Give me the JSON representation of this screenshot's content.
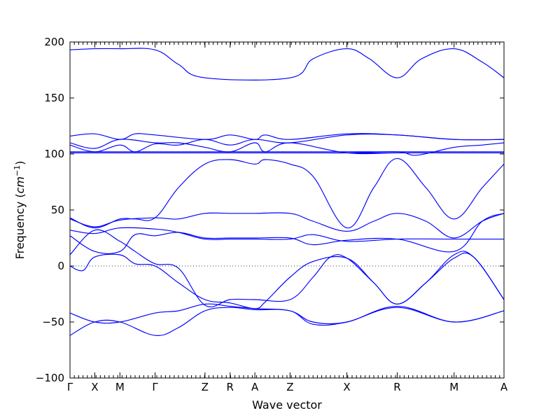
{
  "chart_data": {
    "type": "line",
    "title": "",
    "xlabel": "Wave vector",
    "ylabel": "Frequency (cm⁻¹)",
    "ylabel_main": "Frequency (",
    "ylabel_unit": "cm",
    "ylabel_exp": "−1",
    "ylabel_close": ")",
    "ylim": [
      -100,
      200
    ],
    "yticks": [
      200,
      150,
      100,
      50,
      0,
      -50,
      -100
    ],
    "ytick_labels": [
      "200",
      "150",
      "100",
      "50",
      "0",
      "−50",
      "−100"
    ],
    "xlim": [
      0,
      1
    ],
    "high_symmetry_points": [
      {
        "label": "Γ",
        "x": 0.0
      },
      {
        "label": "X",
        "x": 0.057
      },
      {
        "label": "M",
        "x": 0.115
      },
      {
        "label": "Γ",
        "x": 0.196
      },
      {
        "label": "Z",
        "x": 0.311
      },
      {
        "label": "R",
        "x": 0.369
      },
      {
        "label": "A",
        "x": 0.426
      },
      {
        "label": "Z",
        "x": 0.507
      },
      {
        "label": "X",
        "x": 0.638
      },
      {
        "label": "R",
        "x": 0.754
      },
      {
        "label": "M",
        "x": 0.885
      },
      {
        "label": "A",
        "x": 1.0
      }
    ],
    "zero_line": true,
    "line_color": "#0000ff",
    "series": [
      {
        "points": [
          [
            0,
            193
          ],
          [
            0.057,
            194
          ],
          [
            0.115,
            194
          ],
          [
            0.196,
            193
          ],
          [
            0.25,
            180
          ],
          [
            0.311,
            168
          ],
          [
            0.507,
            168
          ],
          [
            0.56,
            185
          ],
          [
            0.638,
            194
          ],
          [
            0.69,
            185
          ],
          [
            0.754,
            168
          ],
          [
            0.81,
            185
          ],
          [
            0.885,
            194
          ],
          [
            0.95,
            182
          ],
          [
            1.0,
            168
          ]
        ]
      },
      {
        "points": [
          [
            0,
            116
          ],
          [
            0.057,
            118
          ],
          [
            0.115,
            113
          ],
          [
            0.15,
            118
          ],
          [
            0.196,
            117
          ],
          [
            0.311,
            113
          ],
          [
            0.369,
            117
          ],
          [
            0.426,
            113
          ],
          [
            0.45,
            117
          ],
          [
            0.507,
            113
          ],
          [
            0.638,
            118
          ],
          [
            0.754,
            117
          ],
          [
            0.885,
            113
          ],
          [
            1.0,
            113
          ]
        ]
      },
      {
        "points": [
          [
            0,
            108
          ],
          [
            0.057,
            102
          ],
          [
            0.115,
            108
          ],
          [
            0.15,
            102
          ],
          [
            0.196,
            109
          ],
          [
            0.25,
            108
          ],
          [
            0.311,
            113
          ],
          [
            0.369,
            108
          ],
          [
            0.426,
            113
          ],
          [
            0.507,
            110
          ],
          [
            0.638,
            117
          ],
          [
            0.754,
            117
          ],
          [
            0.885,
            113
          ],
          [
            1.0,
            113
          ]
        ]
      },
      {
        "points": [
          [
            0,
            110
          ],
          [
            0.057,
            105
          ],
          [
            0.115,
            113
          ],
          [
            0.196,
            110
          ],
          [
            0.25,
            110
          ],
          [
            0.311,
            106
          ],
          [
            0.369,
            102
          ],
          [
            0.426,
            110
          ],
          [
            0.45,
            102
          ],
          [
            0.507,
            110
          ],
          [
            0.638,
            101
          ],
          [
            0.754,
            101
          ],
          [
            0.885,
            101
          ],
          [
            1.0,
            101
          ]
        ]
      },
      {
        "points": [
          [
            0,
            102
          ],
          [
            0.196,
            102
          ],
          [
            0.507,
            102
          ],
          [
            0.638,
            102
          ],
          [
            0.754,
            102
          ],
          [
            0.885,
            102
          ],
          [
            1.0,
            102
          ]
        ]
      },
      {
        "points": [
          [
            0,
            101
          ],
          [
            0.196,
            101
          ],
          [
            0.507,
            101
          ],
          [
            0.638,
            101
          ],
          [
            0.754,
            101
          ],
          [
            0.885,
            101
          ],
          [
            1.0,
            101
          ]
        ]
      },
      {
        "points": [
          [
            0,
            101
          ],
          [
            0.196,
            101
          ],
          [
            0.311,
            101
          ],
          [
            0.507,
            101
          ],
          [
            0.57,
            101
          ],
          [
            0.638,
            101
          ],
          [
            0.754,
            102
          ],
          [
            0.8,
            99
          ],
          [
            0.885,
            106
          ],
          [
            0.95,
            108
          ],
          [
            1.0,
            110
          ]
        ]
      },
      {
        "points": [
          [
            0,
            43
          ],
          [
            0.057,
            34
          ],
          [
            0.115,
            42
          ],
          [
            0.15,
            42
          ],
          [
            0.196,
            43
          ],
          [
            0.25,
            70
          ],
          [
            0.311,
            91
          ],
          [
            0.369,
            95
          ],
          [
            0.426,
            91
          ],
          [
            0.45,
            95
          ],
          [
            0.507,
            91
          ],
          [
            0.56,
            80
          ],
          [
            0.638,
            34
          ],
          [
            0.7,
            70
          ],
          [
            0.754,
            96
          ],
          [
            0.82,
            70
          ],
          [
            0.885,
            42
          ],
          [
            0.95,
            70
          ],
          [
            1.0,
            91
          ]
        ]
      },
      {
        "points": [
          [
            0,
            42
          ],
          [
            0.057,
            35
          ],
          [
            0.115,
            41
          ],
          [
            0.196,
            43
          ],
          [
            0.25,
            42
          ],
          [
            0.311,
            47
          ],
          [
            0.369,
            47
          ],
          [
            0.426,
            47
          ],
          [
            0.507,
            47
          ],
          [
            0.56,
            40
          ],
          [
            0.638,
            31
          ],
          [
            0.7,
            40
          ],
          [
            0.754,
            47
          ],
          [
            0.82,
            40
          ],
          [
            0.885,
            25
          ],
          [
            0.95,
            40
          ],
          [
            1.0,
            47
          ]
        ]
      },
      {
        "points": [
          [
            0,
            32
          ],
          [
            0.057,
            29
          ],
          [
            0.115,
            34
          ],
          [
            0.196,
            33
          ],
          [
            0.25,
            30
          ],
          [
            0.311,
            24
          ],
          [
            0.369,
            24
          ],
          [
            0.426,
            24
          ],
          [
            0.507,
            24
          ],
          [
            0.56,
            28
          ],
          [
            0.638,
            22
          ],
          [
            0.754,
            24
          ],
          [
            0.885,
            24
          ],
          [
            1.0,
            24
          ]
        ]
      },
      {
        "points": [
          [
            0,
            27
          ],
          [
            0.057,
            13
          ],
          [
            0.115,
            13
          ],
          [
            0.15,
            28
          ],
          [
            0.196,
            27
          ],
          [
            0.25,
            30
          ],
          [
            0.311,
            25
          ],
          [
            0.369,
            25
          ],
          [
            0.426,
            25
          ],
          [
            0.507,
            25
          ],
          [
            0.56,
            19
          ],
          [
            0.638,
            23
          ],
          [
            0.754,
            24
          ],
          [
            0.885,
            13
          ],
          [
            0.95,
            40
          ],
          [
            1.0,
            47
          ]
        ]
      },
      {
        "points": [
          [
            0,
            10
          ],
          [
            0.057,
            32
          ],
          [
            0.115,
            22
          ],
          [
            0.15,
            13
          ],
          [
            0.196,
            2
          ],
          [
            0.25,
            -2
          ],
          [
            0.311,
            -35
          ],
          [
            0.369,
            -30
          ],
          [
            0.426,
            -30
          ],
          [
            0.507,
            -30
          ],
          [
            0.56,
            -10
          ],
          [
            0.6,
            8
          ],
          [
            0.638,
            7
          ],
          [
            0.7,
            -15
          ],
          [
            0.754,
            -34
          ],
          [
            0.82,
            -15
          ],
          [
            0.885,
            7
          ],
          [
            0.93,
            8
          ],
          [
            1.0,
            -30
          ]
        ]
      },
      {
        "points": [
          [
            0,
            0
          ],
          [
            0.03,
            -4
          ],
          [
            0.057,
            8
          ],
          [
            0.115,
            10
          ],
          [
            0.15,
            2
          ],
          [
            0.196,
            0
          ],
          [
            0.25,
            -15
          ],
          [
            0.311,
            -30
          ],
          [
            0.369,
            -33
          ],
          [
            0.426,
            -38
          ],
          [
            0.45,
            -32
          ],
          [
            0.507,
            -10
          ],
          [
            0.56,
            4
          ],
          [
            0.638,
            7
          ],
          [
            0.7,
            -15
          ],
          [
            0.754,
            -34
          ],
          [
            0.82,
            -15
          ],
          [
            0.885,
            10
          ],
          [
            0.93,
            8
          ],
          [
            1.0,
            -30
          ]
        ]
      },
      {
        "points": [
          [
            0,
            -42
          ],
          [
            0.057,
            -50
          ],
          [
            0.115,
            -50
          ],
          [
            0.196,
            -42
          ],
          [
            0.25,
            -40
          ],
          [
            0.311,
            -34
          ],
          [
            0.369,
            -36
          ],
          [
            0.426,
            -38
          ],
          [
            0.507,
            -40
          ],
          [
            0.56,
            -50
          ],
          [
            0.638,
            -50
          ],
          [
            0.754,
            -36
          ],
          [
            0.885,
            -50
          ],
          [
            1.0,
            -40
          ]
        ]
      },
      {
        "points": [
          [
            0,
            -62
          ],
          [
            0.057,
            -50
          ],
          [
            0.115,
            -50
          ],
          [
            0.196,
            -62
          ],
          [
            0.25,
            -55
          ],
          [
            0.311,
            -40
          ],
          [
            0.369,
            -37
          ],
          [
            0.426,
            -39
          ],
          [
            0.507,
            -40
          ],
          [
            0.56,
            -52
          ],
          [
            0.638,
            -50
          ],
          [
            0.754,
            -37
          ],
          [
            0.885,
            -50
          ],
          [
            1.0,
            -40
          ]
        ]
      }
    ]
  }
}
